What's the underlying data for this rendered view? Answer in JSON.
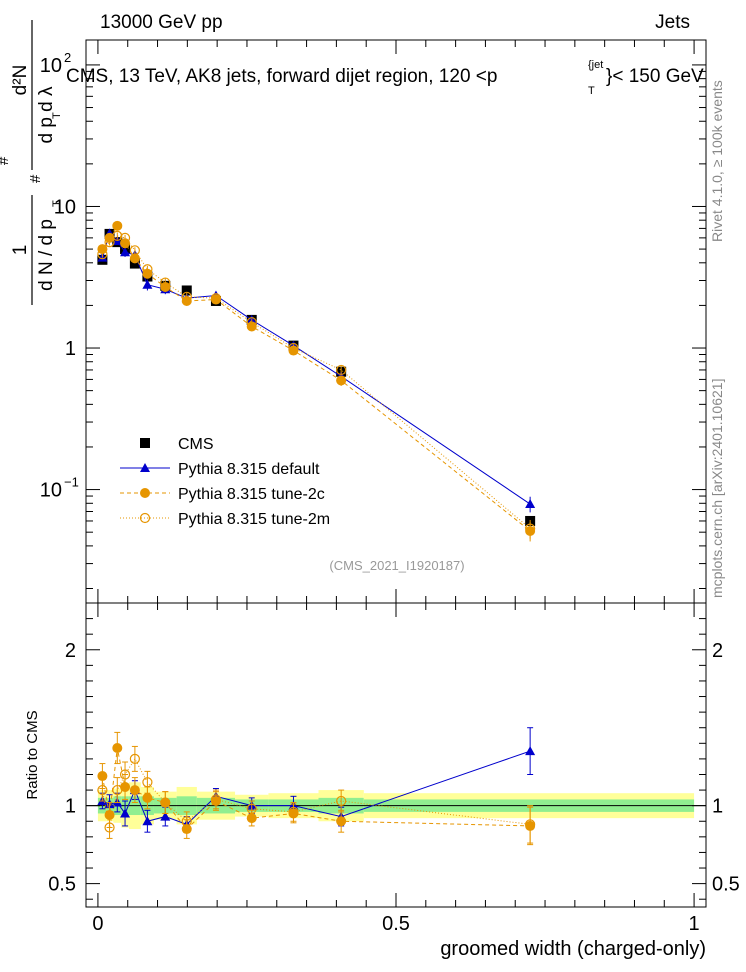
{
  "header": {
    "left": "13000 GeV pp",
    "right": "Jets"
  },
  "side_labels": {
    "rivet": "Rivet 4.1.0, ≥ 100k events",
    "mcplots": "mcplots.cern.ch [arXiv:2401.10621]"
  },
  "chart_data": [
    {
      "type": "scatter",
      "title_main": "CMS, 13 TeV, AK8 jets, forward dijet region, 120 <p",
      "title_sup": "{jet",
      "title_sub": "T",
      "title_tail": "}< 150 GeV",
      "ylabel_num": "d²N",
      "ylabel_den": "d p  d λ",
      "ylabel_den_sub": "T",
      "ylabel_pre": "1",
      "ylabel_pre_den": "d N / d p",
      "ylabel_pre_den_sub": "T",
      "ylabel_hash": "#",
      "yscale": "log",
      "ylim": [
        0.0158,
        150
      ],
      "xlim": [
        -0.02,
        1.02
      ],
      "y_ticks": [
        {
          "v": 0.1,
          "base": "10",
          "exp": "−1"
        },
        {
          "v": 1,
          "base": "1",
          "exp": ""
        },
        {
          "v": 10,
          "base": "10",
          "exp": ""
        },
        {
          "v": 100,
          "base": "10",
          "exp": "2"
        }
      ],
      "watermark": "(CMS_2021_I1920187)",
      "legend_position": "bottom-left",
      "series": [
        {
          "name": "CMS",
          "color": "#000000",
          "marker": "square",
          "x": [
            0.0075,
            0.0195,
            0.0325,
            0.0455,
            0.062,
            0.083,
            0.113,
            0.149,
            0.198,
            0.258,
            0.328,
            0.408,
            0.725
          ],
          "y": [
            4.2,
            6.4,
            5.6,
            5.0,
            3.95,
            3.2,
            2.75,
            2.55,
            2.15,
            1.58,
            1.04,
            0.68,
            0.06
          ]
        },
        {
          "name": "Pythia 8.315 default",
          "color": "#0000cc",
          "marker": "triangle",
          "line": "solid",
          "x": [
            0.0075,
            0.0195,
            0.0325,
            0.0455,
            0.062,
            0.083,
            0.113,
            0.149,
            0.198,
            0.258,
            0.328,
            0.408,
            0.725
          ],
          "y": [
            4.35,
            6.45,
            5.7,
            4.75,
            4.55,
            2.8,
            2.6,
            2.25,
            2.35,
            1.58,
            1.04,
            0.63,
            0.079
          ],
          "yerr": [
            0.2,
            0.35,
            0.3,
            0.35,
            0.3,
            0.25,
            0.2,
            0.15,
            0.15,
            0.08,
            0.06,
            0.05,
            0.01
          ]
        },
        {
          "name": "Pythia 8.315 tune-2c",
          "color": "#e69500",
          "marker": "circle",
          "line": "dashed",
          "x": [
            0.0075,
            0.0195,
            0.0325,
            0.0455,
            0.062,
            0.083,
            0.113,
            0.149,
            0.198,
            0.258,
            0.328,
            0.408,
            0.725
          ],
          "y": [
            5.0,
            6.0,
            7.3,
            5.5,
            4.3,
            3.35,
            2.7,
            2.15,
            2.2,
            1.42,
            0.96,
            0.59,
            0.051
          ],
          "yerr": [
            0.25,
            0.3,
            0.4,
            0.3,
            0.25,
            0.2,
            0.2,
            0.15,
            0.15,
            0.08,
            0.06,
            0.05,
            0.008
          ]
        },
        {
          "name": "Pythia 8.315 tune-2m",
          "color": "#e69500",
          "marker": "open-circle",
          "line": "dotted",
          "x": [
            0.0075,
            0.0195,
            0.0325,
            0.0455,
            0.062,
            0.083,
            0.113,
            0.149,
            0.198,
            0.258,
            0.328,
            0.408,
            0.725
          ],
          "y": [
            4.6,
            5.6,
            6.2,
            6.0,
            4.9,
            3.6,
            2.9,
            2.3,
            2.25,
            1.52,
            1.0,
            0.7,
            0.053
          ],
          "yerr": [
            0.25,
            0.3,
            0.35,
            0.3,
            0.25,
            0.2,
            0.2,
            0.15,
            0.15,
            0.08,
            0.06,
            0.05,
            0.008
          ]
        }
      ]
    },
    {
      "type": "scatter",
      "ylabel": "Ratio to CMS",
      "xlabel": "groomed width (charged-only)",
      "ylim": [
        0.35,
        2.3
      ],
      "xlim": [
        -0.02,
        1.02
      ],
      "y_ticks": [
        0.5,
        1,
        2
      ],
      "y_tick_labels": [
        "0.5",
        "1",
        "2"
      ],
      "x_ticks": [
        0,
        0.5,
        1
      ],
      "x_tick_labels": [
        "0",
        "0.5",
        "1"
      ],
      "bands": {
        "edges": [
          0.0,
          0.015,
          0.026,
          0.039,
          0.052,
          0.072,
          0.094,
          0.132,
          0.166,
          0.23,
          0.286,
          0.37,
          0.446,
          1.0
        ],
        "green_half": [
          0.05,
          0.05,
          0.06,
          0.06,
          0.06,
          0.06,
          0.05,
          0.06,
          0.05,
          0.04,
          0.04,
          0.05,
          0.04
        ],
        "yellow_half": [
          0.1,
          0.1,
          0.11,
          0.14,
          0.15,
          0.12,
          0.09,
          0.12,
          0.09,
          0.07,
          0.08,
          0.1,
          0.08
        ],
        "green_color": "#90ee90",
        "yellow_color": "#ffff99"
      },
      "series": [
        {
          "name": "Pythia 8.315 default",
          "color": "#0000cc",
          "marker": "triangle",
          "line": "solid",
          "x": [
            0.0075,
            0.0195,
            0.0325,
            0.0455,
            0.062,
            0.083,
            0.113,
            0.149,
            0.198,
            0.258,
            0.328,
            0.408,
            0.725
          ],
          "y": [
            1.03,
            1.01,
            1.02,
            0.95,
            1.1,
            0.9,
            0.93,
            0.88,
            1.06,
            1.0,
            1.0,
            0.93,
            1.35
          ],
          "yerr": [
            0.05,
            0.06,
            0.06,
            0.08,
            0.06,
            0.07,
            0.06,
            0.05,
            0.05,
            0.05,
            0.06,
            0.06,
            0.15
          ]
        },
        {
          "name": "Pythia 8.315 tune-2c",
          "color": "#e69500",
          "marker": "circle",
          "line": "dashed",
          "x": [
            0.0075,
            0.0195,
            0.0325,
            0.0455,
            0.062,
            0.083,
            0.113,
            0.149,
            0.198,
            0.258,
            0.328,
            0.408,
            0.725
          ],
          "y": [
            1.19,
            0.94,
            1.37,
            1.12,
            1.1,
            1.05,
            1.02,
            0.85,
            1.03,
            0.92,
            0.95,
            0.9,
            0.87
          ],
          "yerr": [
            0.08,
            0.08,
            0.1,
            0.08,
            0.08,
            0.07,
            0.07,
            0.06,
            0.06,
            0.05,
            0.06,
            0.07,
            0.12
          ]
        },
        {
          "name": "Pythia 8.315 tune-2m",
          "color": "#e69500",
          "marker": "open-circle",
          "line": "dotted",
          "x": [
            0.0075,
            0.0195,
            0.0325,
            0.0455,
            0.062,
            0.083,
            0.113,
            0.149,
            0.198,
            0.258,
            0.328,
            0.408,
            0.725
          ],
          "y": [
            1.1,
            0.86,
            1.1,
            1.2,
            1.3,
            1.15,
            1.02,
            0.9,
            1.04,
            0.98,
            0.96,
            1.03,
            0.88
          ],
          "yerr": [
            0.07,
            0.07,
            0.08,
            0.08,
            0.08,
            0.07,
            0.07,
            0.06,
            0.06,
            0.05,
            0.06,
            0.07,
            0.12
          ]
        }
      ]
    }
  ]
}
